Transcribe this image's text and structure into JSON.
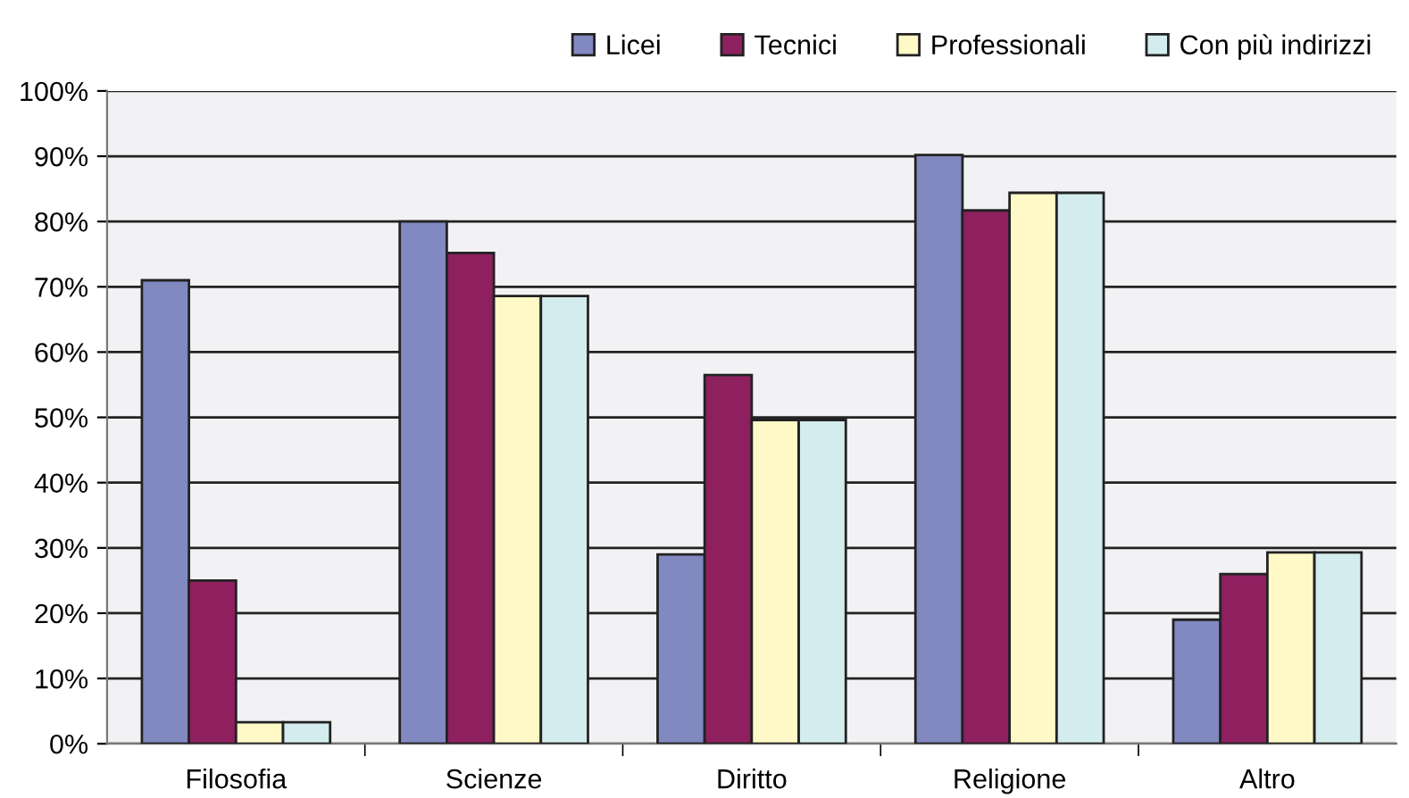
{
  "chart_data": {
    "type": "bar",
    "categories": [
      "Filosofia",
      "Scienze",
      "Diritto",
      "Religione",
      "Altro"
    ],
    "series": [
      {
        "name": "Licei",
        "color": "#8288c0",
        "values": [
          71,
          80,
          29,
          90.2,
          19
        ]
      },
      {
        "name": "Tecnici",
        "color": "#8e2060",
        "values": [
          25,
          75.2,
          56.5,
          81.7,
          26
        ]
      },
      {
        "name": "Professionali",
        "color": "#fef9c6",
        "values": [
          3.3,
          68.6,
          49.6,
          84.4,
          29.3
        ]
      },
      {
        "name": "Con più indirizzi",
        "color": "#d3ecee",
        "values": [
          3.3,
          68.6,
          49.6,
          84.4,
          29.3
        ]
      }
    ],
    "ylim": [
      0,
      100
    ],
    "yticks": [
      {
        "value": 0,
        "label": "0%"
      },
      {
        "value": 10,
        "label": "10%"
      },
      {
        "value": 20,
        "label": "20%"
      },
      {
        "value": 30,
        "label": "30%"
      },
      {
        "value": 40,
        "label": "40%"
      },
      {
        "value": 50,
        "label": "50%"
      },
      {
        "value": 60,
        "label": "60%"
      },
      {
        "value": 70,
        "label": "70%"
      },
      {
        "value": 80,
        "label": "80%"
      },
      {
        "value": 90,
        "label": "90%"
      },
      {
        "value": 100,
        "label": "100%"
      }
    ],
    "grid": "y",
    "legend": "top right"
  }
}
